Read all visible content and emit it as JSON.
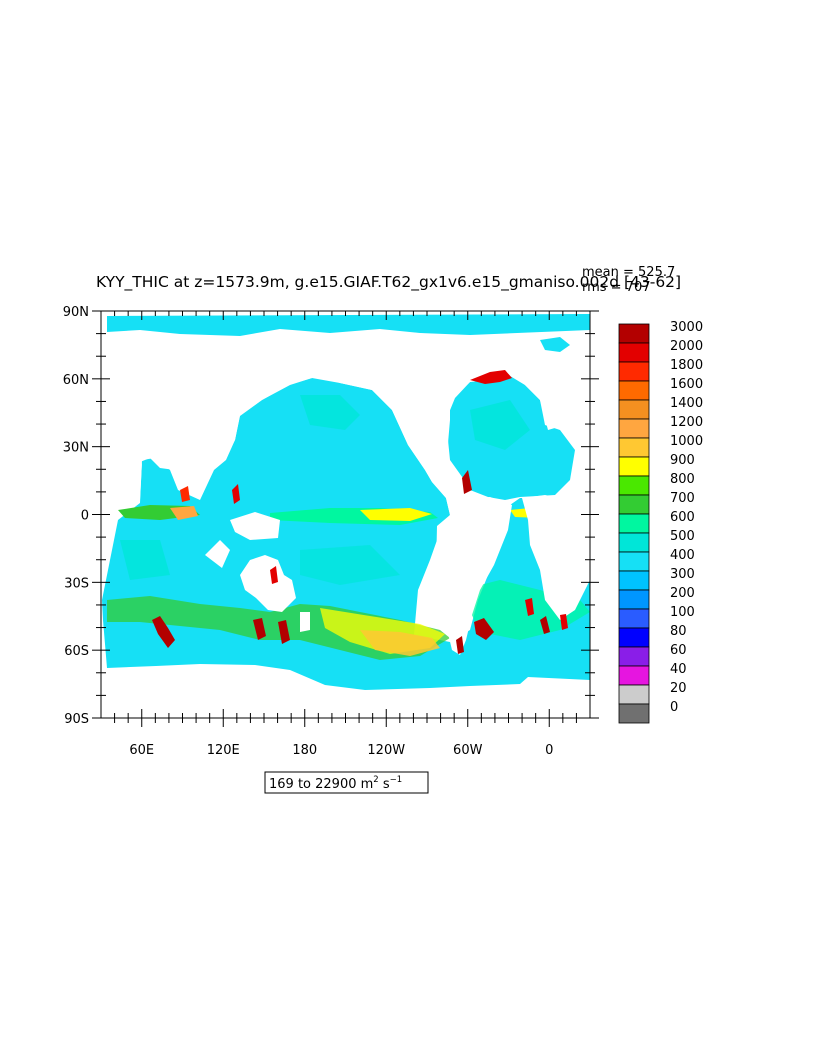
{
  "chart_data": {
    "type": "heatmap",
    "title": "KYY_THIC at z=1573.9m, g.e15.GIAF.T62_gx1v6.e15_gmaniso.002d [43-62]",
    "stats": {
      "mean": "mean = 525.7",
      "rms": "rms = 707"
    },
    "range_label": {
      "prefix": "169 to 22900 m",
      "sq": "2",
      "mid": " s",
      "inv": "−1"
    },
    "x_ticks": [
      {
        "label": "60E",
        "lon": 60
      },
      {
        "label": "120E",
        "lon": 120
      },
      {
        "label": "180",
        "lon": 180
      },
      {
        "label": "120W",
        "lon": 240
      },
      {
        "label": "60W",
        "lon": 300
      },
      {
        "label": "0",
        "lon": 360
      }
    ],
    "y_ticks": [
      {
        "label": "90N",
        "lat": 90
      },
      {
        "label": "60N",
        "lat": 60
      },
      {
        "label": "30N",
        "lat": 30
      },
      {
        "label": "0",
        "lat": 0
      },
      {
        "label": "30S",
        "lat": -30
      },
      {
        "label": "60S",
        "lat": -60
      },
      {
        "label": "90S",
        "lat": -90
      }
    ],
    "xlim": [
      30,
      390
    ],
    "ylim": [
      -90,
      90
    ],
    "colorbar": {
      "labels": [
        "3000",
        "2000",
        "1800",
        "1600",
        "1400",
        "1200",
        "1000",
        "900",
        "800",
        "700",
        "600",
        "500",
        "400",
        "300",
        "200",
        "100",
        "80",
        "60",
        "40",
        "20",
        "0"
      ],
      "colors": [
        "#b30000",
        "#e30000",
        "#ff2a00",
        "#ff6a00",
        "#f59020",
        "#ffa640",
        "#ffc832",
        "#ffff00",
        "#4ae800",
        "#33cc33",
        "#00f7a0",
        "#00e6d8",
        "#16e0f5",
        "#00c3ff",
        "#0096ff",
        "#2a5cff",
        "#0000ff",
        "#8a1ee8",
        "#e615e0",
        "#cccccc",
        "#707070"
      ]
    },
    "land_color": "#ffffff",
    "ocean_base_color": "#16e0f5",
    "grid": false
  }
}
